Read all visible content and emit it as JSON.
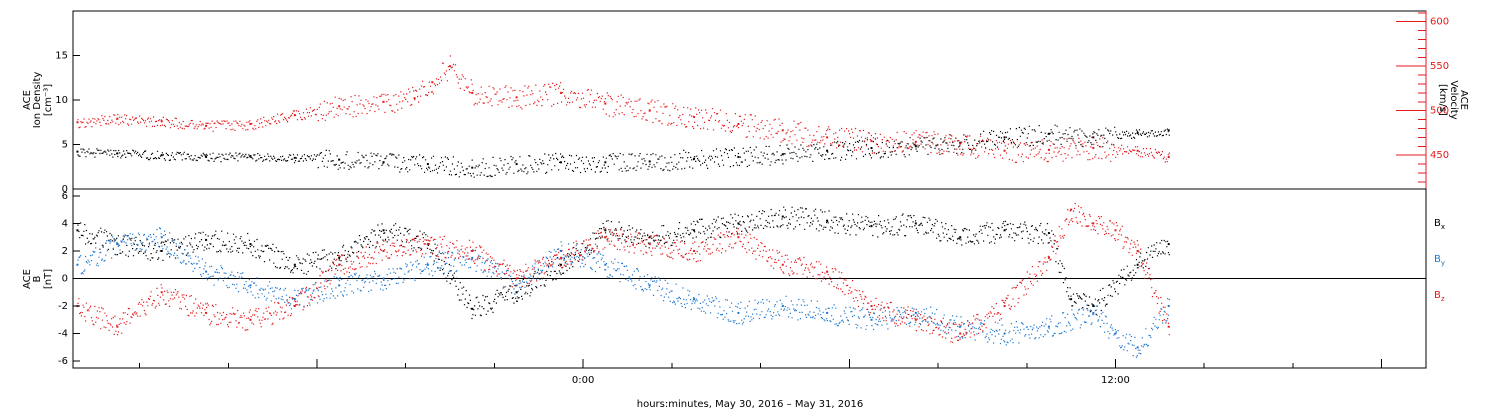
{
  "chart_data": [
    {
      "type": "scatter",
      "title": "",
      "ylabel": [
        "ACE",
        "Ion Density",
        "[cm⁻³]"
      ],
      "y2label": [
        "ACE",
        "Velocity",
        "[km/s]"
      ],
      "ylim": [
        0,
        20
      ],
      "y2lim": [
        412,
        612
      ],
      "yticks": [
        0,
        5,
        10,
        15
      ],
      "y2ticks": [
        450,
        500,
        550,
        600
      ],
      "xlim": [
        -11.5,
        19.0
      ],
      "grid": false,
      "colors": {
        "density": "#000000",
        "velocity": "#e41a1c"
      },
      "series": [
        {
          "key": "density",
          "axis": "left",
          "points": [
            [
              -11.4,
              4.2
            ],
            [
              -10.5,
              4.0
            ],
            [
              -9.5,
              3.8
            ],
            [
              -8.5,
              3.6
            ],
            [
              -7.5,
              3.7
            ],
            [
              -6.5,
              3.5
            ],
            [
              -5.5,
              3.3
            ],
            [
              -4.5,
              3.0
            ],
            [
              -3.5,
              2.8
            ],
            [
              -2.5,
              2.4
            ],
            [
              -1.5,
              2.8
            ],
            [
              -0.5,
              3.0
            ],
            [
              0.5,
              3.0
            ],
            [
              1.5,
              3.1
            ],
            [
              2.5,
              3.4
            ],
            [
              3.5,
              3.6
            ],
            [
              4.5,
              3.9
            ],
            [
              5.5,
              4.3
            ],
            [
              6.5,
              4.6
            ],
            [
              7.5,
              4.8
            ],
            [
              8.5,
              5.2
            ],
            [
              9.5,
              5.8
            ],
            [
              10.5,
              6.2
            ],
            [
              11.5,
              5.8
            ],
            [
              12.5,
              6.3
            ],
            [
              13.2,
              6.6
            ]
          ]
        },
        {
          "key": "velocity",
          "axis": "right",
          "points": [
            [
              -11.4,
              487
            ],
            [
              -10.5,
              491
            ],
            [
              -9.5,
              488
            ],
            [
              -8.5,
              483
            ],
            [
              -7.5,
              485
            ],
            [
              -6.5,
              495
            ],
            [
              -5.5,
              505
            ],
            [
              -4.5,
              510
            ],
            [
              -3.8,
              514
            ],
            [
              -3.4,
              532
            ],
            [
              -3.0,
              550
            ],
            [
              -2.5,
              520
            ],
            [
              -1.5,
              515
            ],
            [
              -0.5,
              520
            ],
            [
              0.5,
              508
            ],
            [
              1.5,
              500
            ],
            [
              2.5,
              493
            ],
            [
              3.5,
              485
            ],
            [
              4.5,
              478
            ],
            [
              5.5,
              470
            ],
            [
              6.5,
              466
            ],
            [
              7.5,
              465
            ],
            [
              8.5,
              463
            ],
            [
              9.5,
              455
            ],
            [
              10.5,
              456
            ],
            [
              11.5,
              458
            ],
            [
              12.5,
              455
            ],
            [
              13.2,
              448
            ]
          ]
        }
      ]
    },
    {
      "type": "scatter",
      "title": "",
      "ylabel": [
        "ACE",
        "B",
        "[nT]"
      ],
      "ylim": [
        -6.5,
        6.5
      ],
      "yticks": [
        -6,
        -4,
        -2,
        0,
        2,
        4,
        6
      ],
      "xlim": [
        -11.5,
        19.0
      ],
      "xticks": [
        -10.0,
        -8.0,
        -6.0,
        -4.0,
        -2.0,
        0.0,
        2.0,
        4.0,
        6.0,
        8.0,
        10.0,
        12.0,
        14.0,
        16.0,
        18.0
      ],
      "xticklabels": [
        {
          "x": 0,
          "text": "0:00"
        },
        {
          "x": 12,
          "text": "12:00"
        }
      ],
      "xlabel": "hours:minutes, May 30, 2016 – May 31, 2016",
      "zero_line": true,
      "grid": false,
      "series": [
        {
          "name": "B",
          "sub": "x",
          "color": "#000000",
          "points": [
            [
              -11.4,
              3.5
            ],
            [
              -10.5,
              2.5
            ],
            [
              -9.5,
              2.0
            ],
            [
              -8.5,
              2.8
            ],
            [
              -7.5,
              2.5
            ],
            [
              -6.5,
              1.0
            ],
            [
              -5.5,
              1.5
            ],
            [
              -4.5,
              3.5
            ],
            [
              -3.5,
              2.5
            ],
            [
              -2.5,
              -2.2
            ],
            [
              -1.5,
              -1.0
            ],
            [
              -0.5,
              1.0
            ],
            [
              0.5,
              3.5
            ],
            [
              1.5,
              3.0
            ],
            [
              2.5,
              3.5
            ],
            [
              3.5,
              4.0
            ],
            [
              4.5,
              4.5
            ],
            [
              5.5,
              4.2
            ],
            [
              6.5,
              3.8
            ],
            [
              7.5,
              4.0
            ],
            [
              8.5,
              3.0
            ],
            [
              9.5,
              3.5
            ],
            [
              10.5,
              3.3
            ],
            [
              11.0,
              -1.5
            ],
            [
              11.5,
              -2.0
            ],
            [
              12.5,
              1.0
            ],
            [
              13.2,
              2.5
            ]
          ]
        },
        {
          "name": "B",
          "sub": "y",
          "color": "#1f78d0",
          "points": [
            [
              -11.4,
              1.0
            ],
            [
              -10.5,
              2.5
            ],
            [
              -9.5,
              3.0
            ],
            [
              -8.5,
              0.5
            ],
            [
              -7.5,
              -0.5
            ],
            [
              -6.5,
              -1.5
            ],
            [
              -5.5,
              -0.5
            ],
            [
              -4.5,
              0.0
            ],
            [
              -3.5,
              1.0
            ],
            [
              -2.5,
              1.5
            ],
            [
              -1.5,
              -0.5
            ],
            [
              -0.5,
              2.0
            ],
            [
              0.5,
              1.0
            ],
            [
              1.5,
              -0.5
            ],
            [
              2.5,
              -1.5
            ],
            [
              3.5,
              -2.5
            ],
            [
              4.5,
              -2.0
            ],
            [
              5.5,
              -2.5
            ],
            [
              6.5,
              -3.0
            ],
            [
              7.5,
              -2.5
            ],
            [
              8.5,
              -3.5
            ],
            [
              9.5,
              -4.0
            ],
            [
              10.5,
              -3.5
            ],
            [
              11.5,
              -2.5
            ],
            [
              12.0,
              -4.0
            ],
            [
              12.5,
              -5.0
            ],
            [
              13.2,
              -2.0
            ]
          ]
        },
        {
          "name": "B",
          "sub": "z",
          "color": "#e41a1c",
          "points": [
            [
              -11.4,
              -2.0
            ],
            [
              -10.5,
              -3.5
            ],
            [
              -9.5,
              -1.0
            ],
            [
              -8.5,
              -2.5
            ],
            [
              -7.5,
              -3.0
            ],
            [
              -6.5,
              -2.0
            ],
            [
              -5.5,
              1.0
            ],
            [
              -4.5,
              2.0
            ],
            [
              -3.5,
              2.5
            ],
            [
              -2.5,
              2.0
            ],
            [
              -1.5,
              0.0
            ],
            [
              -0.5,
              1.5
            ],
            [
              0.5,
              3.0
            ],
            [
              1.5,
              2.5
            ],
            [
              2.5,
              2.0
            ],
            [
              3.5,
              3.0
            ],
            [
              4.5,
              1.0
            ],
            [
              5.5,
              0.5
            ],
            [
              6.5,
              -2.0
            ],
            [
              7.5,
              -3.0
            ],
            [
              8.5,
              -4.0
            ],
            [
              9.5,
              -2.0
            ],
            [
              10.5,
              1.5
            ],
            [
              11.0,
              5.0
            ],
            [
              11.5,
              4.0
            ],
            [
              12.0,
              3.5
            ],
            [
              12.5,
              2.0
            ],
            [
              13.2,
              -3.5
            ]
          ]
        }
      ]
    }
  ]
}
